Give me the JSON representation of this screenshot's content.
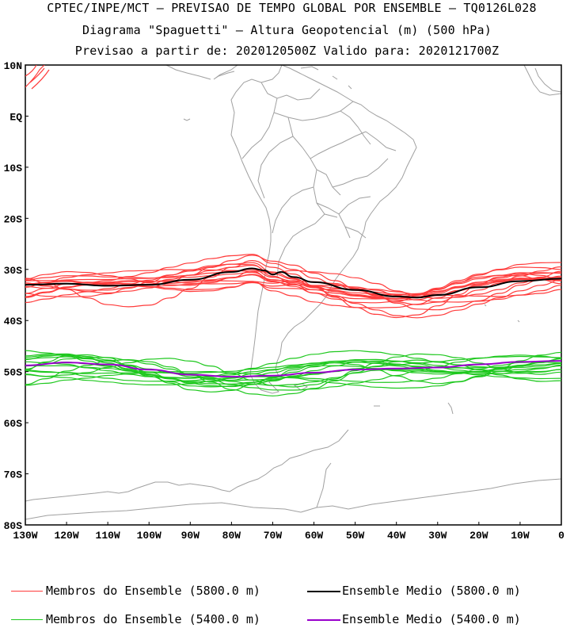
{
  "header": {
    "line1": "CPTEC/INPE/MCT — PREVISAO DE TEMPO GLOBAL POR ENSEMBLE — TQ0126L028",
    "line2": "Diagrama \"Spaguetti\" — Altura Geopotencial (m) (500 hPa)",
    "line3": "Previsao a partir de: 2020120500Z  Valido para: 2020121700Z"
  },
  "map": {
    "lat_labels": [
      "10N",
      "EQ",
      "10S",
      "20S",
      "30S",
      "40S",
      "50S",
      "60S",
      "70S",
      "80S"
    ],
    "lon_labels": [
      "130W",
      "120W",
      "110W",
      "100W",
      "90W",
      "80W",
      "70W",
      "60W",
      "50W",
      "40W",
      "30W",
      "20W",
      "10W",
      "0"
    ],
    "lat_range": [
      10,
      -80
    ],
    "lon_range": [
      -130,
      0
    ],
    "colors": {
      "coast": "#a0a0a0",
      "members_5800": "#ff3c3c",
      "members_5400": "#1ec81e",
      "mean_5800": "#000000",
      "mean_5400": "#9900cc"
    }
  },
  "chart_data": {
    "type": "line",
    "x_label": "",
    "y_label": "",
    "xlim": [
      -130,
      0
    ],
    "ylim": [
      -80,
      10
    ],
    "series": [
      {
        "name": "Ensemble Medio (5800.0 m)",
        "lon": [
          -130,
          -120,
          -110,
          -100,
          -90,
          -80,
          -75,
          -72,
          -70,
          -68,
          -65,
          -60,
          -50,
          -40,
          -35,
          -30,
          -20,
          -10,
          0
        ],
        "lat": [
          -33,
          -32.8,
          -33.2,
          -33,
          -32,
          -30.5,
          -29.8,
          -30.2,
          -31,
          -30.5,
          -31.5,
          -32.5,
          -34,
          -35.3,
          -35.5,
          -35,
          -33.5,
          -32.3,
          -31.8
        ]
      },
      {
        "name": "Ensemble Medio (5400.0 m)",
        "lon": [
          -130,
          -120,
          -110,
          -100,
          -90,
          -80,
          -70,
          -60,
          -50,
          -40,
          -30,
          -20,
          -10,
          0
        ],
        "lat": [
          -48.8,
          -48.2,
          -48.6,
          -49.6,
          -50.6,
          -51,
          -50.8,
          -50.2,
          -49.6,
          -49.4,
          -49.2,
          -48.6,
          -48.1,
          -47.9
        ]
      }
    ]
  },
  "legend": {
    "members_5800": "Membros do Ensemble (5800.0 m)",
    "mean_5800": "Ensemble Medio (5800.0 m)",
    "members_5400": "Membros do Ensemble (5400.0 m)",
    "mean_5400": "Ensemble Medio (5400.0 m)"
  }
}
